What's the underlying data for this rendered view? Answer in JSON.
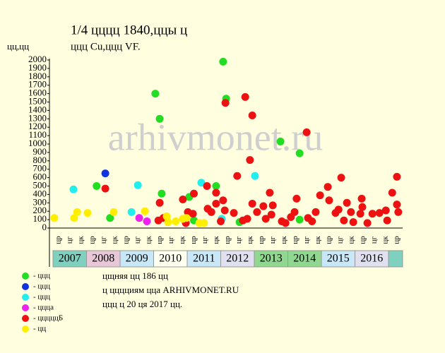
{
  "chart_data": {
    "type": "scatter",
    "title": "1/4 цццц 1840,ццы ц",
    "subtitle": "ццц Cu,ццц VF.",
    "y_label": "цц,цц",
    "watermark": "arhivmonet.ru",
    "ylim": [
      0,
      2000
    ],
    "yticks": [
      0,
      100,
      200,
      300,
      400,
      500,
      600,
      700,
      800,
      900,
      1000,
      1100,
      1200,
      1300,
      1400,
      1500,
      1600,
      1700,
      1800,
      1900,
      2000
    ],
    "xlim": [
      2007,
      2017.42
    ],
    "x_labels": [
      "цр",
      "цг",
      "цк",
      "цр",
      "цг",
      "цк",
      "цр",
      "цг",
      "цк",
      "цр",
      "цг",
      "цк",
      "цр",
      "цг",
      "цк",
      "цр",
      "цг",
      "цк",
      "цр",
      "цг",
      "цк",
      "цр",
      "цг",
      "цк",
      "цр",
      "цг",
      "цк",
      "цр",
      "цг",
      "цк",
      "цр"
    ],
    "years": [
      "2007",
      "2008",
      "2009",
      "2010",
      "2011",
      "2012",
      "2013",
      "2014",
      "2015",
      "2016",
      null
    ],
    "year_colors": [
      "#80d0c0",
      "#e8c8d8",
      "#c8e8f8",
      "#fffff0",
      "#c8e8f8",
      "#e0e0f0",
      "#90d890",
      "#90d890",
      "#c8e8f8",
      "#e0e0f0",
      "#80d0c0"
    ],
    "series": [
      {
        "name": "- ццц",
        "color": "#22dd22",
        "x": [
          2008.3,
          2008.7,
          2010.05,
          2010.18,
          2010.24,
          2011.06,
          2011.86,
          2012.07,
          2012.16,
          2012.56,
          2013.78,
          2014.35,
          2014.35,
          2011.2
        ],
        "values": [
          500,
          120,
          1600,
          1300,
          410,
          370,
          500,
          1980,
          1540,
          70,
          1030,
          890,
          100,
          90
        ]
      },
      {
        "name": "- ццц",
        "color": "#1133dd",
        "x": [
          2008.56
        ],
        "values": [
          650
        ]
      },
      {
        "name": "- ццц",
        "color": "#22eeee",
        "x": [
          2007.61,
          2009.34,
          2009.53,
          2011.42,
          2013.02,
          2012.03
        ],
        "values": [
          460,
          190,
          510,
          540,
          620,
          110
        ]
      },
      {
        "name": "- ццца",
        "color": "#ee22ee",
        "x": [
          2009.57,
          2009.8
        ],
        "values": [
          120,
          80
        ]
      },
      {
        "name": "- цццццБ",
        "color": "#ee1111",
        "x": [
          2008.56,
          2010.18,
          2010.14,
          2010.29,
          2010.87,
          2011.2,
          2011.02,
          2010.96,
          2011.17,
          2011.59,
          2011.61,
          2011.72,
          2011.86,
          2011.86,
          2012.07,
          2012.12,
          2012.14,
          2012,
          2012.39,
          2012.49,
          2012.73,
          2012.94,
          2012.87,
          2012.79,
          2012.94,
          2013.08,
          2013.27,
          2013.46,
          2013.55,
          2013.51,
          2013.82,
          2014.09,
          2014.26,
          2014.2,
          2014.56,
          2014.6,
          2014.83,
          2014.96,
          2015.19,
          2015.23,
          2015.42,
          2015.59,
          2015.51,
          2015.76,
          2015.88,
          2015.67,
          2016.16,
          2016.2,
          2016.22,
          2016.52,
          2016.73,
          2016.92,
          2017.11,
          2017.25,
          2017.25,
          2017.29,
          2016.96,
          2016.37,
          2015.95,
          2014.72,
          2013.93,
          2013.34,
          2012.66
        ],
        "values": [
          470,
          300,
          90,
          120,
          340,
          410,
          190,
          60,
          170,
          500,
          230,
          190,
          420,
          290,
          330,
          210,
          1490,
          80,
          180,
          620,
          1560,
          1340,
          810,
          110,
          290,
          190,
          260,
          420,
          270,
          160,
          80,
          130,
          350,
          190,
          1140,
          120,
          190,
          390,
          490,
          330,
          180,
          600,
          220,
          300,
          190,
          90,
          170,
          350,
          250,
          170,
          180,
          210,
          420,
          610,
          280,
          190,
          90,
          60,
          70,
          80,
          60,
          110,
          90
        ]
      },
      {
        "name": "- цц",
        "color": "#ffee00",
        "x": [
          2007.04,
          2007.63,
          2007.72,
          2008.03,
          2008.81,
          2009.74,
          2010.39,
          2010.66,
          2010.87,
          2010.98,
          2011.36,
          2011.5,
          2010.43
        ],
        "values": [
          120,
          120,
          190,
          180,
          190,
          200,
          140,
          80,
          110,
          120,
          60,
          60,
          70
        ]
      }
    ],
    "notes": [
      "цщняя цц 186 цц",
      "ц цццциям цца ARHIVMONET.RU",
      "ццц ц 20 ця 2017 цц."
    ]
  }
}
